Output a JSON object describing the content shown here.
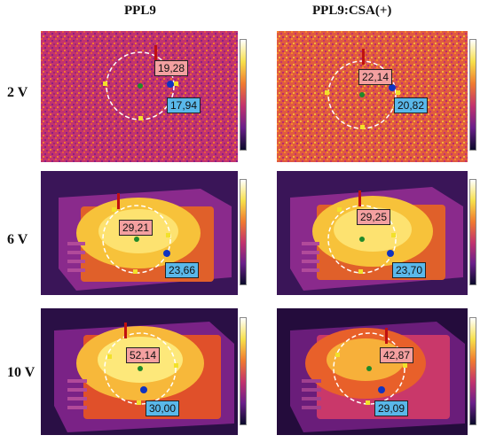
{
  "columns": [
    "PPL9",
    "PPL9:CSA(+)"
  ],
  "rows": [
    "2 V",
    "6 V",
    "10 V"
  ],
  "panels": [
    {
      "hot": "19,28",
      "cold": "17,94"
    },
    {
      "hot": "22,14",
      "cold": "20,82"
    },
    {
      "hot": "29,21",
      "cold": "23,66"
    },
    {
      "hot": "29,25",
      "cold": "23,70"
    },
    {
      "hot": "52,14",
      "cold": "30,00"
    },
    {
      "hot": "42,87",
      "cold": "29,09"
    }
  ],
  "colors": {
    "hot_tag": "#f4a0a0",
    "cold_tag": "#5ab8ea",
    "center_dot": "#1f8a2a",
    "marker_square": "#f2e12a"
  }
}
